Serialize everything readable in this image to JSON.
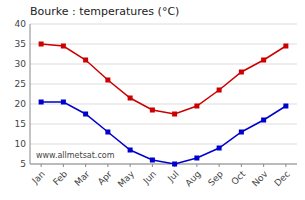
{
  "chart_data": {
    "type": "line",
    "title": "Bourke : temperatures (°C)",
    "categories": [
      "Jan",
      "Feb",
      "Mar",
      "Apr",
      "May",
      "Jun",
      "Jul",
      "Aug",
      "Sep",
      "Oct",
      "Nov",
      "Dec"
    ],
    "series": [
      {
        "color": "#cc0000",
        "marker": "square",
        "values": [
          35,
          34.5,
          31,
          26,
          21.5,
          18.5,
          17.5,
          19.5,
          23.5,
          28,
          31,
          34.5
        ]
      },
      {
        "color": "#0000cc",
        "marker": "square",
        "values": [
          20.5,
          20.5,
          17.5,
          13,
          8.5,
          6,
          5,
          6.5,
          9,
          13,
          16,
          19.5
        ]
      }
    ],
    "ylim": [
      5,
      40
    ],
    "yticks": [
      5,
      10,
      15,
      20,
      25,
      30,
      35,
      40
    ],
    "grid": true,
    "annotations": [
      "www.allmetsat.com"
    ]
  }
}
